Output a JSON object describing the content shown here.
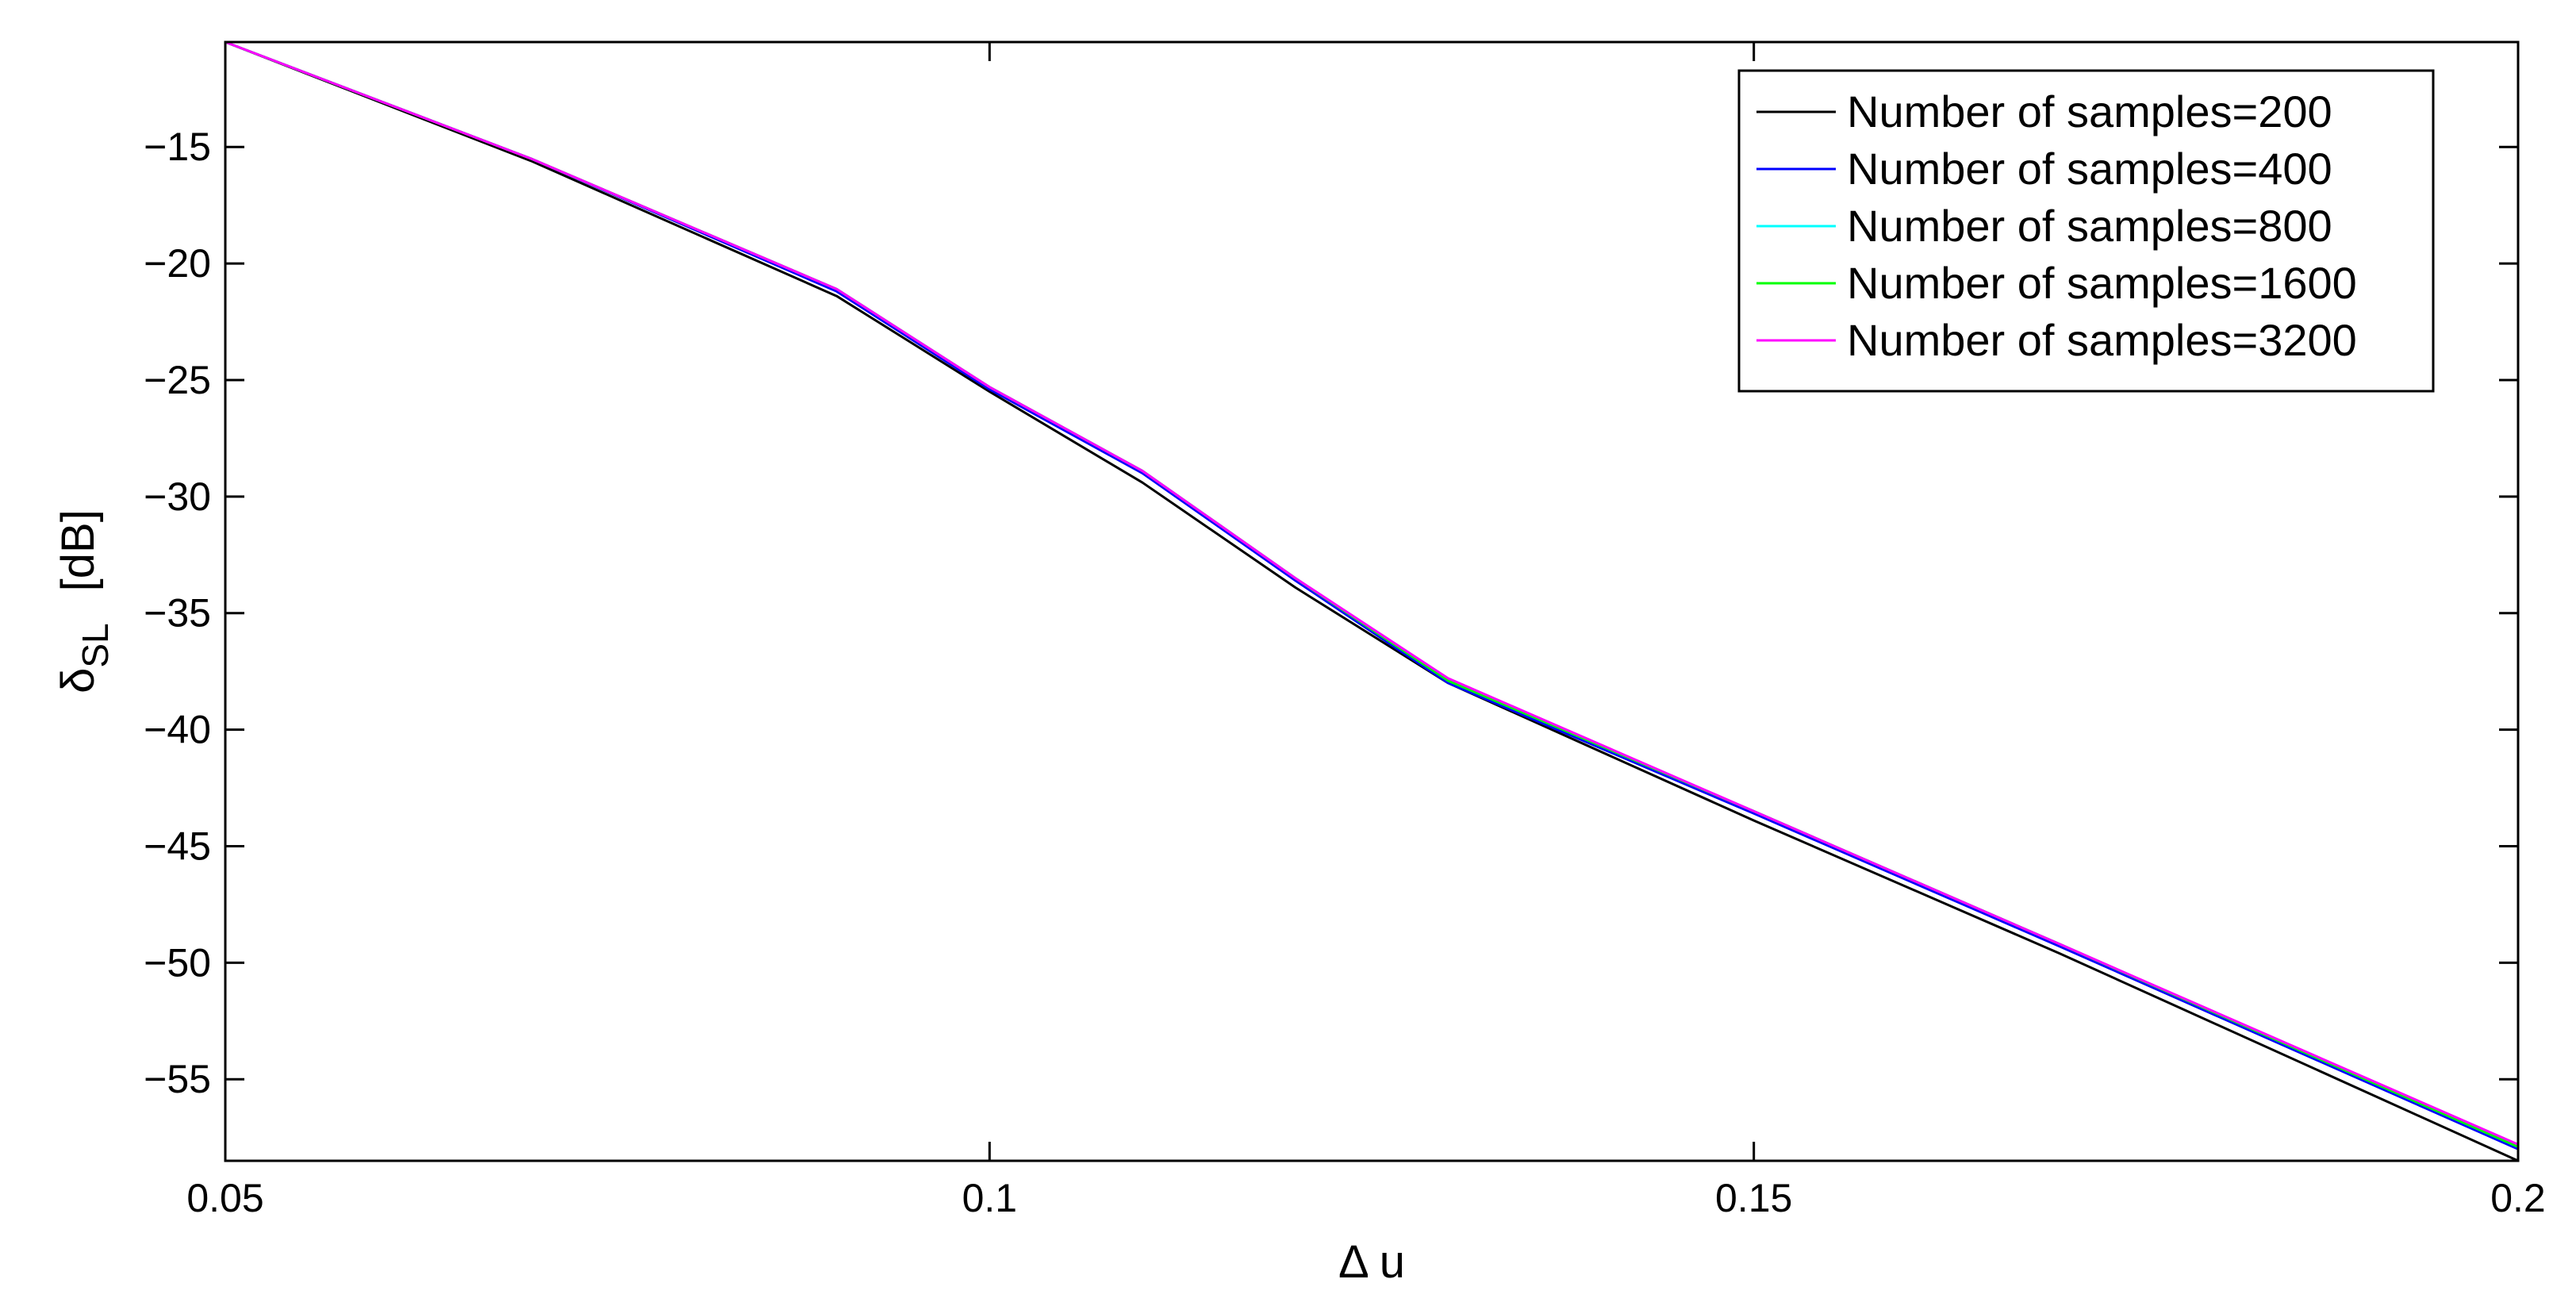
{
  "chart_data": {
    "type": "line",
    "title": "",
    "xlabel": "Δ u",
    "ylabel": {
      "symbol": "δ",
      "subscript": "SL",
      "unit": "[dB]"
    },
    "xlim": [
      0.05,
      0.2
    ],
    "ylim": [
      -58.5,
      -10.5
    ],
    "x_ticks": [
      {
        "value": 0.05,
        "label": "0.05"
      },
      {
        "value": 0.1,
        "label": "0.1"
      },
      {
        "value": 0.15,
        "label": "0.15"
      },
      {
        "value": 0.2,
        "label": "0.2"
      }
    ],
    "y_ticks": [
      {
        "value": -15,
        "label": "−15"
      },
      {
        "value": -20,
        "label": "−20"
      },
      {
        "value": -25,
        "label": "−25"
      },
      {
        "value": -30,
        "label": "−30"
      },
      {
        "value": -35,
        "label": "−35"
      },
      {
        "value": -40,
        "label": "−40"
      },
      {
        "value": -45,
        "label": "−45"
      },
      {
        "value": -50,
        "label": "−50"
      },
      {
        "value": -55,
        "label": "−55"
      }
    ],
    "grid": false,
    "legend_position": "top-right",
    "series": [
      {
        "name": "Number of samples=200",
        "color": "#000000",
        "points": [
          [
            0.05,
            -10.5
          ],
          [
            0.07,
            -15.6
          ],
          [
            0.09,
            -21.4
          ],
          [
            0.1,
            -25.5
          ],
          [
            0.11,
            -29.4
          ],
          [
            0.12,
            -33.9
          ],
          [
            0.13,
            -38.0
          ],
          [
            0.15,
            -43.9
          ],
          [
            0.17,
            -49.6
          ],
          [
            0.2,
            -58.5
          ]
        ]
      },
      {
        "name": "Number of samples=400",
        "color": "#0000ff",
        "points": [
          [
            0.05,
            -10.5
          ],
          [
            0.07,
            -15.5
          ],
          [
            0.09,
            -21.2
          ],
          [
            0.1,
            -25.4
          ],
          [
            0.11,
            -29.0
          ],
          [
            0.12,
            -33.6
          ],
          [
            0.13,
            -38.0
          ],
          [
            0.15,
            -43.6
          ],
          [
            0.17,
            -49.3
          ],
          [
            0.2,
            -58.0
          ]
        ]
      },
      {
        "name": "Number of samples=800",
        "color": "#00ffff",
        "points": [
          [
            0.05,
            -10.5
          ],
          [
            0.07,
            -15.5
          ],
          [
            0.09,
            -21.1
          ],
          [
            0.1,
            -25.3
          ],
          [
            0.11,
            -28.9
          ],
          [
            0.12,
            -33.5
          ],
          [
            0.13,
            -37.9
          ],
          [
            0.15,
            -43.5
          ],
          [
            0.17,
            -49.2
          ],
          [
            0.2,
            -57.9
          ]
        ]
      },
      {
        "name": "Number of samples=1600",
        "color": "#00ff00",
        "points": [
          [
            0.05,
            -10.5
          ],
          [
            0.07,
            -15.5
          ],
          [
            0.09,
            -21.1
          ],
          [
            0.1,
            -25.3
          ],
          [
            0.11,
            -28.9
          ],
          [
            0.12,
            -33.5
          ],
          [
            0.13,
            -37.9
          ],
          [
            0.15,
            -43.5
          ],
          [
            0.17,
            -49.2
          ],
          [
            0.2,
            -57.9
          ]
        ]
      },
      {
        "name": "Number of samples=3200",
        "color": "#ff00ff",
        "points": [
          [
            0.05,
            -10.5
          ],
          [
            0.07,
            -15.5
          ],
          [
            0.09,
            -21.1
          ],
          [
            0.1,
            -25.3
          ],
          [
            0.11,
            -28.9
          ],
          [
            0.12,
            -33.5
          ],
          [
            0.13,
            -37.8
          ],
          [
            0.15,
            -43.5
          ],
          [
            0.17,
            -49.2
          ],
          [
            0.2,
            -57.8
          ]
        ]
      }
    ]
  }
}
